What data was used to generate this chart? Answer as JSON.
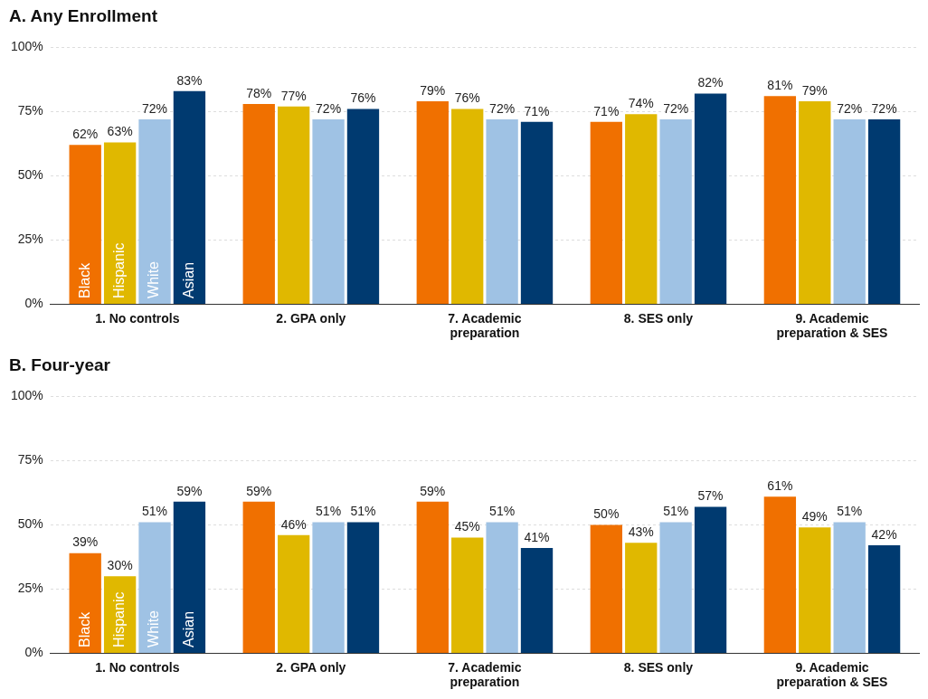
{
  "chart_data": [
    {
      "type": "bar",
      "title": "A.   Any Enrollment",
      "categories": [
        "1. No controls",
        "2. GPA only",
        "7. Academic preparation",
        "8. SES only",
        "9. Academic preparation & SES"
      ],
      "series": [
        {
          "name": "Black",
          "color": "#f07000",
          "values": [
            62,
            78,
            79,
            71,
            81
          ],
          "value_labels": [
            "62%",
            "78%",
            "79%",
            "71%",
            "81%"
          ]
        },
        {
          "name": "Hispanic",
          "color": "#e0b800",
          "values": [
            63,
            77,
            76,
            74,
            79
          ],
          "value_labels": [
            "63%",
            "77%",
            "76%",
            "74%",
            "79%"
          ]
        },
        {
          "name": "White",
          "color": "#9fc2e4",
          "values": [
            72,
            72,
            72,
            72,
            72
          ],
          "value_labels": [
            "72%",
            "72%",
            "72%",
            "72%",
            "72%"
          ]
        },
        {
          "name": "Asian",
          "color": "#003a70",
          "values": [
            83,
            76,
            71,
            82,
            72
          ],
          "value_labels": [
            "83%",
            "76%",
            "71%",
            "82%",
            "72%"
          ]
        }
      ],
      "ylim": [
        0,
        100
      ],
      "yticks": [
        {
          "value": 0,
          "label": "0%"
        },
        {
          "value": 25,
          "label": "25%"
        },
        {
          "value": 50,
          "label": "50%"
        },
        {
          "value": 75,
          "label": "75%"
        },
        {
          "value": 100,
          "label": "100%"
        }
      ],
      "grid": "y",
      "legend": false
    },
    {
      "type": "bar",
      "title": "B.   Four-year",
      "categories": [
        "1. No controls",
        "2. GPA only",
        "7. Academic preparation",
        "8. SES only",
        "9. Academic preparation & SES"
      ],
      "series": [
        {
          "name": "Black",
          "color": "#f07000",
          "values": [
            39,
            59,
            59,
            50,
            61
          ],
          "value_labels": [
            "39%",
            "59%",
            "59%",
            "50%",
            "61%"
          ]
        },
        {
          "name": "Hispanic",
          "color": "#e0b800",
          "values": [
            30,
            46,
            45,
            43,
            49
          ],
          "value_labels": [
            "30%",
            "46%",
            "45%",
            "43%",
            "49%"
          ]
        },
        {
          "name": "White",
          "color": "#9fc2e4",
          "values": [
            51,
            51,
            51,
            51,
            51
          ],
          "value_labels": [
            "51%",
            "51%",
            "51%",
            "51%",
            "51%"
          ]
        },
        {
          "name": "Asian",
          "color": "#003a70",
          "values": [
            59,
            51,
            41,
            57,
            42
          ],
          "value_labels": [
            "59%",
            "51%",
            "41%",
            "57%",
            "42%"
          ]
        }
      ],
      "ylim": [
        0,
        100
      ],
      "yticks": [
        {
          "value": 0,
          "label": "0%"
        },
        {
          "value": 25,
          "label": "25%"
        },
        {
          "value": 50,
          "label": "50%"
        },
        {
          "value": 75,
          "label": "75%"
        },
        {
          "value": 100,
          "label": "100%"
        }
      ],
      "grid": "y",
      "legend": false
    }
  ]
}
